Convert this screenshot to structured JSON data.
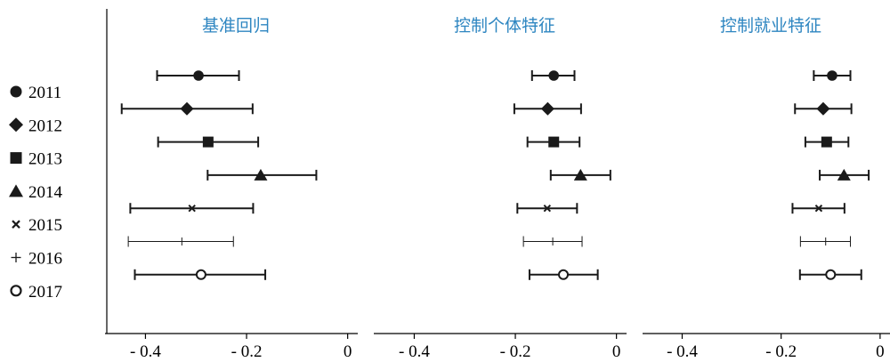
{
  "chart_data": {
    "type": "scatter",
    "description": "Point estimates with confidence intervals by year across three model specifications",
    "years": [
      "2011",
      "2012",
      "2013",
      "2014",
      "2015",
      "2016",
      "2017"
    ],
    "markers": [
      "filled-circle",
      "filled-diamond",
      "filled-square",
      "filled-triangle",
      "cross",
      "plus",
      "open-circle"
    ],
    "xlim": [
      -0.48,
      0.02
    ],
    "xticks": [
      -0.4,
      -0.2,
      0
    ],
    "xtick_labels": [
      "- 0.4",
      "- 0.2",
      "0"
    ],
    "panels": [
      {
        "title": "基准回归",
        "series": [
          {
            "year": "2011",
            "est": -0.295,
            "lo": -0.377,
            "hi": -0.215
          },
          {
            "year": "2012",
            "est": -0.318,
            "lo": -0.447,
            "hi": -0.188
          },
          {
            "year": "2013",
            "est": -0.276,
            "lo": -0.375,
            "hi": -0.177
          },
          {
            "year": "2014",
            "est": -0.172,
            "lo": -0.277,
            "hi": -0.062
          },
          {
            "year": "2015",
            "est": -0.308,
            "lo": -0.43,
            "hi": -0.187
          },
          {
            "year": "2016",
            "est": -0.328,
            "lo": -0.434,
            "hi": -0.226
          },
          {
            "year": "2017",
            "est": -0.29,
            "lo": -0.421,
            "hi": -0.163
          }
        ]
      },
      {
        "title": "控制个体特征",
        "series": [
          {
            "year": "2011",
            "est": -0.124,
            "lo": -0.167,
            "hi": -0.083
          },
          {
            "year": "2012",
            "est": -0.136,
            "lo": -0.202,
            "hi": -0.07
          },
          {
            "year": "2013",
            "est": -0.124,
            "lo": -0.176,
            "hi": -0.073
          },
          {
            "year": "2014",
            "est": -0.071,
            "lo": -0.13,
            "hi": -0.012
          },
          {
            "year": "2015",
            "est": -0.137,
            "lo": -0.196,
            "hi": -0.078
          },
          {
            "year": "2016",
            "est": -0.126,
            "lo": -0.184,
            "hi": -0.068
          },
          {
            "year": "2017",
            "est": -0.105,
            "lo": -0.172,
            "hi": -0.037
          }
        ]
      },
      {
        "title": "控制就业特征",
        "series": [
          {
            "year": "2011",
            "est": -0.097,
            "lo": -0.134,
            "hi": -0.06
          },
          {
            "year": "2012",
            "est": -0.115,
            "lo": -0.172,
            "hi": -0.058
          },
          {
            "year": "2013",
            "est": -0.108,
            "lo": -0.151,
            "hi": -0.064
          },
          {
            "year": "2014",
            "est": -0.073,
            "lo": -0.122,
            "hi": -0.023
          },
          {
            "year": "2015",
            "est": -0.124,
            "lo": -0.177,
            "hi": -0.072
          },
          {
            "year": "2016",
            "est": -0.11,
            "lo": -0.161,
            "hi": -0.06
          },
          {
            "year": "2017",
            "est": -0.1,
            "lo": -0.162,
            "hi": -0.038
          }
        ]
      }
    ],
    "colors": {
      "marker": "#1a1a1a",
      "title": "#2e86c1",
      "axis": "#000000"
    }
  }
}
